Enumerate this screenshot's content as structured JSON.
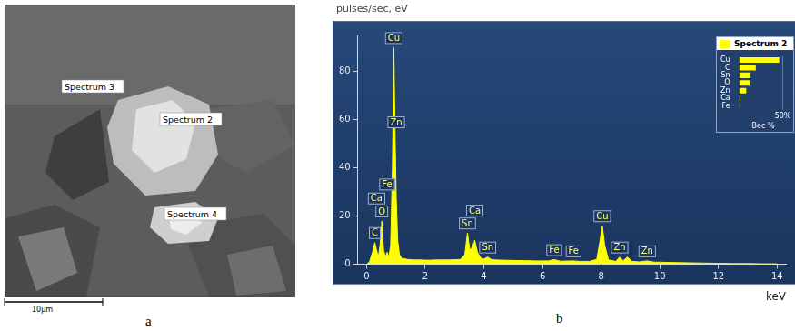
{
  "sem_image": {
    "labels": [
      "Spectrum 3",
      "Spectrum 2",
      "Spectrum 4"
    ],
    "scale_bar": "10µm",
    "caption": "a"
  },
  "chart_data": [
    {
      "type": "area",
      "caption": "b",
      "ylabel": "pulses/sec, eV",
      "xlabel": "keV",
      "color": "#ffff00",
      "grid": false,
      "x": [
        0.0,
        0.1,
        0.2,
        0.28,
        0.34,
        0.4,
        0.46,
        0.52,
        0.58,
        0.64,
        0.7,
        0.76,
        0.82,
        0.88,
        0.93,
        0.97,
        1.01,
        1.06,
        1.12,
        1.2,
        1.4,
        1.6,
        1.8,
        2.0,
        2.2,
        2.4,
        2.6,
        2.8,
        3.0,
        3.2,
        3.35,
        3.44,
        3.52,
        3.6,
        3.69,
        3.78,
        3.9,
        4.0,
        4.13,
        4.25,
        4.4,
        4.6,
        5.0,
        5.4,
        5.8,
        6.2,
        6.4,
        6.6,
        7.06,
        7.3,
        7.6,
        7.85,
        7.95,
        8.04,
        8.12,
        8.25,
        8.5,
        8.63,
        8.75,
        8.9,
        9.05,
        9.3,
        9.57,
        9.8,
        10.2,
        10.6,
        11.0,
        11.5,
        12.0,
        12.5,
        13.0,
        13.5,
        14.0
      ],
      "values": [
        0,
        1,
        5,
        9,
        6,
        3,
        8,
        18,
        6,
        3,
        5,
        3,
        8,
        40,
        90,
        55,
        28,
        10,
        4,
        2.5,
        2,
        1.8,
        1.8,
        1.7,
        1.7,
        1.8,
        1.8,
        1.8,
        1.9,
        2,
        4,
        13,
        6,
        7,
        10,
        5,
        2.5,
        2.2,
        3,
        2,
        1.8,
        1.7,
        1.6,
        1.5,
        1.4,
        1.4,
        1.9,
        1.3,
        1.4,
        1.2,
        1.2,
        2,
        9,
        16,
        8,
        1.8,
        1.2,
        3,
        1.5,
        3,
        1.2,
        1,
        1.4,
        0.9,
        0.8,
        0.7,
        0.6,
        0.5,
        0.4,
        0.3,
        0.3,
        0.2,
        0.2
      ],
      "xlim": [
        -0.3,
        14.3
      ],
      "ylim": [
        0,
        95
      ],
      "xticks": [
        0,
        2,
        4,
        6,
        8,
        10,
        12,
        14
      ],
      "yticks": [
        0,
        20,
        40,
        60,
        80
      ],
      "annotations": [
        {
          "text": "Cu",
          "x": 0.93
        },
        {
          "text": "C",
          "x": 0.28
        },
        {
          "text": "O",
          "x": 0.52
        },
        {
          "text": "Zn",
          "x": 1.01
        },
        {
          "text": "Ca",
          "x": 0.34
        },
        {
          "text": "Fe",
          "x": 0.7
        },
        {
          "text": "Sn",
          "x": 3.44
        },
        {
          "text": "Ca",
          "x": 3.69
        },
        {
          "text": "Sn",
          "x": 4.13
        },
        {
          "text": "Fe",
          "x": 6.4
        },
        {
          "text": "Fe",
          "x": 7.06
        },
        {
          "text": "Cu",
          "x": 8.04
        },
        {
          "text": "Zn",
          "x": 8.63
        },
        {
          "text": "Zn",
          "x": 9.57
        }
      ]
    },
    {
      "type": "bar",
      "orientation": "horizontal",
      "legend": "top",
      "grid": true,
      "categories": [
        "Cu",
        "C",
        "Sn",
        "O",
        "Zn",
        "Ca",
        "Fe"
      ],
      "series": [
        {
          "name": "Spectrum 2",
          "color": "#ffff00",
          "values": [
            46,
            19,
            13,
            12,
            8,
            1,
            0.5
          ]
        }
      ],
      "xlabel": "Вес %",
      "xlim": [
        0,
        55
      ],
      "xticks": [
        {
          "value": 50,
          "label": "50%"
        }
      ]
    }
  ]
}
